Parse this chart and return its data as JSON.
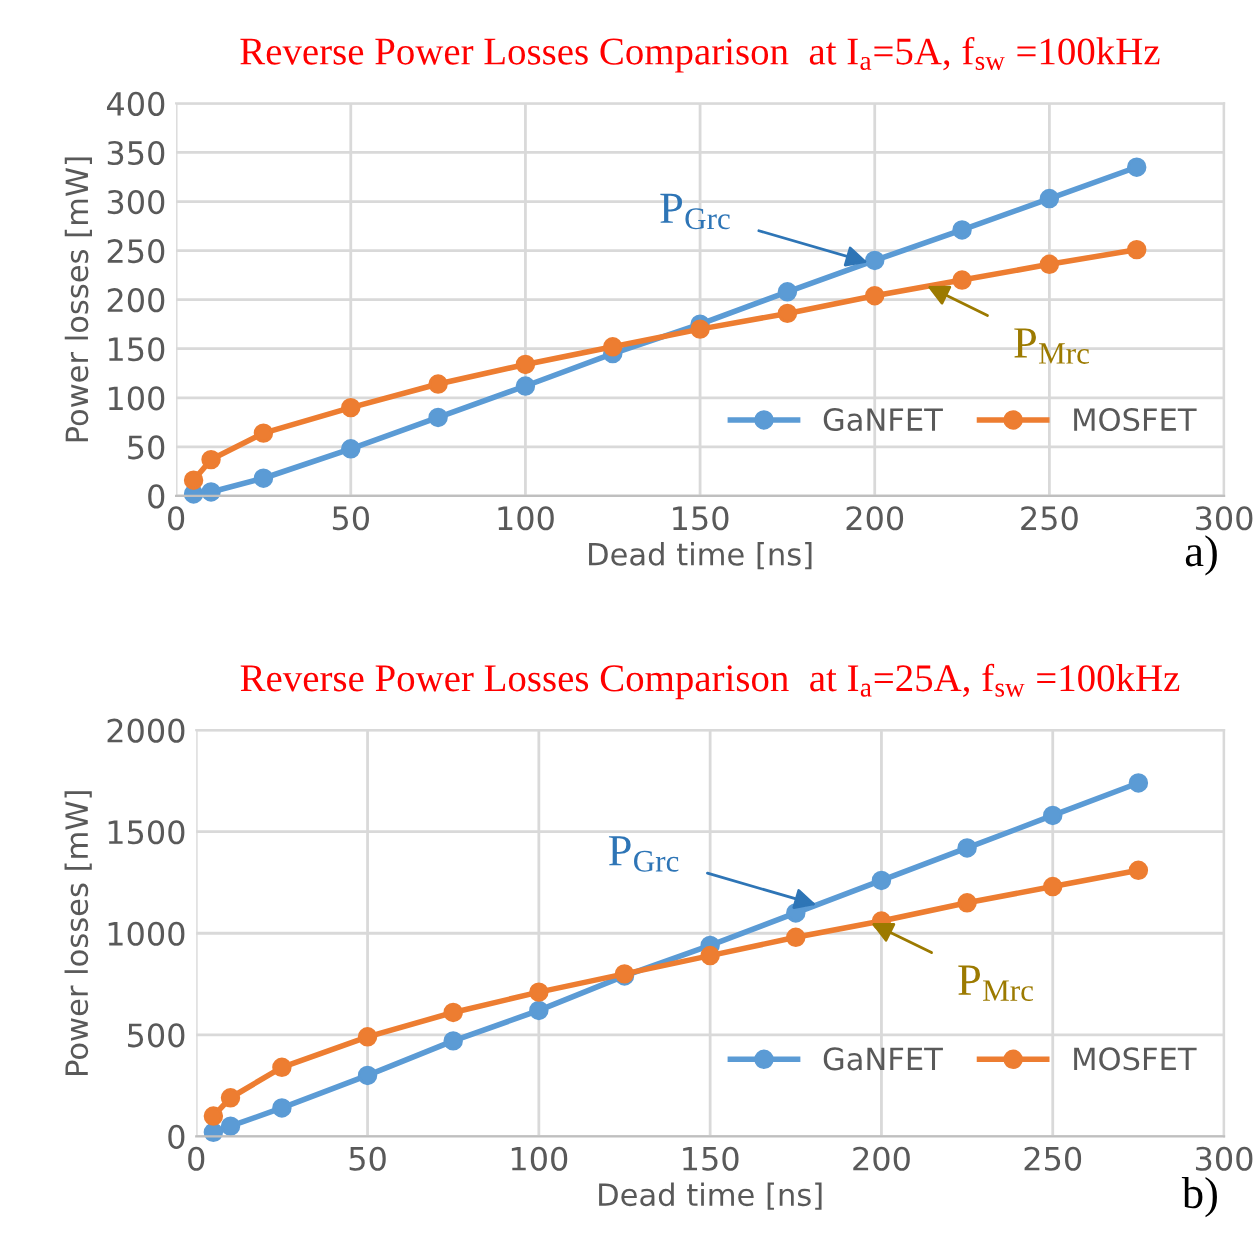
{
  "chart_data": [
    {
      "type": "line",
      "title": "Reverse Power Losses Comparison  at I$_{a}$=5A, f$_{sw}$ =100kHz",
      "xlabel": "Dead time [ns]",
      "ylabel": "Power losses [mW]",
      "x": [
        5,
        10,
        25,
        50,
        75,
        100,
        125,
        150,
        175,
        200,
        225,
        250,
        275
      ],
      "series": [
        {
          "name": "GaNFET",
          "color": "#5b9bd5",
          "values": [
            2,
            4,
            18,
            48,
            80,
            112,
            145,
            175,
            208,
            240,
            271,
            303,
            335
          ]
        },
        {
          "name": "MOSFET",
          "color": "#ed7d31",
          "values": [
            16,
            37,
            64,
            90,
            114,
            134,
            152,
            170,
            186,
            204,
            220,
            236,
            251
          ]
        }
      ],
      "xlim": [
        0,
        300
      ],
      "xticks": [
        0,
        50,
        100,
        150,
        200,
        250,
        300
      ],
      "ylim": [
        0,
        400
      ],
      "yticks": [
        0,
        50,
        100,
        150,
        200,
        250,
        300,
        350,
        400
      ],
      "grid": true,
      "legend": "bottom right",
      "marker": "circle",
      "line_style": "solid",
      "annotations": [
        {
          "text": "P$_{Grc}$",
          "x": 198,
          "y": 238
        },
        {
          "text": "P$_{Mrc}$",
          "x": 215,
          "y": 214
        },
        "a)"
      ]
    },
    {
      "type": "line",
      "title": "Reverse Power Losses Comparison  at I$_{a}$=25A, f$_{sw}$ =100kHz",
      "xlabel": "Dead time [ns]",
      "ylabel": "Power losses [mW]",
      "x": [
        5,
        10,
        25,
        50,
        75,
        100,
        125,
        150,
        175,
        200,
        225,
        250,
        275
      ],
      "series": [
        {
          "name": "GaNFET",
          "color": "#5b9bd5",
          "values": [
            20,
            50,
            140,
            300,
            470,
            620,
            790,
            940,
            1100,
            1260,
            1420,
            1580,
            1740
          ]
        },
        {
          "name": "MOSFET",
          "color": "#ed7d31",
          "values": [
            100,
            190,
            340,
            490,
            610,
            710,
            800,
            890,
            980,
            1060,
            1150,
            1230,
            1310
          ]
        }
      ],
      "xlim": [
        0,
        300
      ],
      "xticks": [
        0,
        50,
        100,
        150,
        200,
        250,
        300
      ],
      "ylim": [
        0,
        2000
      ],
      "yticks": [
        0,
        500,
        1000,
        1500,
        2000
      ],
      "grid": true,
      "legend": "bottom right",
      "marker": "circle",
      "line_style": "solid",
      "annotations": [
        {
          "text": "P$_{Grc}$",
          "x": 181,
          "y": 1140
        },
        {
          "text": "P$_{Mrc}$",
          "x": 197,
          "y": 1050
        },
        "b)"
      ]
    }
  ]
}
